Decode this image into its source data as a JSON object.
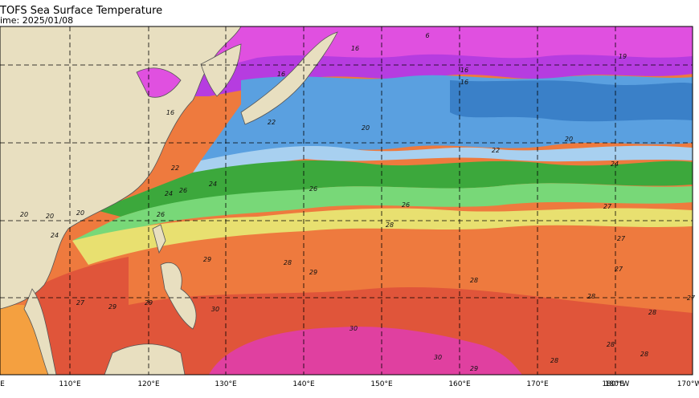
{
  "header": {
    "title": "TOFS Sea Surface Temperature",
    "time": "ime: 2025/01/08"
  },
  "longitude_labels": [
    "E",
    "110°E",
    "120°E",
    "130°E",
    "140°E",
    "150°E",
    "160°E",
    "170°E",
    "180°E",
    "180°W",
    "170°W"
  ],
  "contour_labels": [
    "6",
    "16",
    "16",
    "20",
    "16",
    "16",
    "19",
    "16",
    "20",
    "22",
    "20",
    "20",
    "22",
    "24",
    "24",
    "22",
    "24",
    "26",
    "26",
    "26",
    "27",
    "28",
    "27",
    "29",
    "29",
    "28",
    "27",
    "28",
    "28",
    "30",
    "30",
    "29",
    "30",
    "28",
    "28",
    "28",
    "27",
    "27",
    "29",
    "29",
    "26",
    "24",
    "20",
    "28"
  ]
}
